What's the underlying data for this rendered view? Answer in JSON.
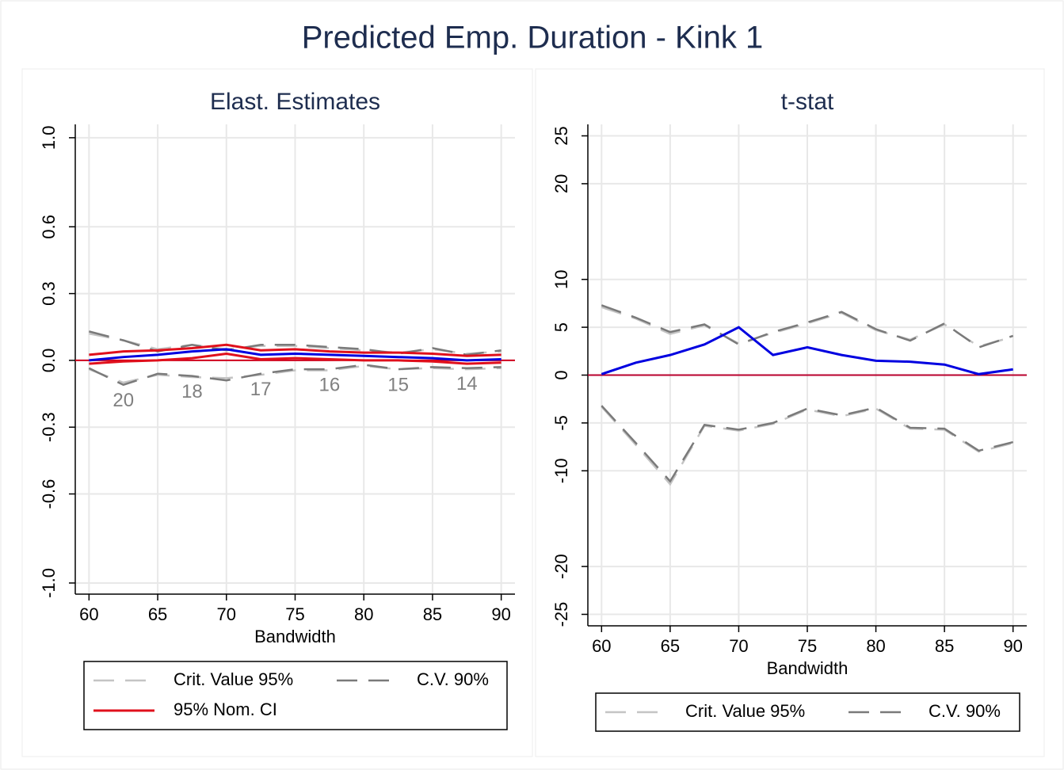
{
  "title": "Predicted Emp. Duration - Kink 1",
  "chart_data": [
    {
      "type": "line",
      "title": "Elast. Estimates",
      "x_label": "Bandwidth",
      "x": [
        60,
        62.5,
        65,
        67.5,
        70,
        72.5,
        75,
        77.5,
        80,
        82.5,
        85,
        87.5,
        90
      ],
      "xlim": [
        59,
        91
      ],
      "xticks": [
        60,
        65,
        70,
        75,
        80,
        85,
        90
      ],
      "ylim": [
        -1.05,
        1.06
      ],
      "yticks": [
        {
          "value": 1,
          "label": "1.0"
        },
        0.6,
        0.3,
        {
          "value": 0,
          "label": "0.0"
        },
        -0.3,
        -0.6,
        {
          "value": -1,
          "label": "-1.0"
        }
      ],
      "grid": true,
      "reference_line": 0,
      "reference_color": "#d0001c",
      "series": [
        {
          "name": "Crit. Value 95%",
          "color": "#c4c4c4",
          "dashed": true,
          "values": [
            0.12,
            0.09,
            0.05,
            0.07,
            0.05,
            0.065,
            0.065,
            0.055,
            0.045,
            0.035,
            0.05,
            0.03,
            0.04
          ],
          "lower": [
            -0.04,
            -0.1,
            -0.065,
            -0.075,
            -0.08,
            -0.065,
            -0.045,
            -0.045,
            -0.025,
            -0.04,
            -0.035,
            -0.04,
            -0.035
          ]
        },
        {
          "name": "C.V. 90%",
          "color": "#7a7a7a",
          "dashed": true,
          "values": [
            0.13,
            0.09,
            0.04,
            0.07,
            0.045,
            0.07,
            0.07,
            0.06,
            0.05,
            0.03,
            0.055,
            0.025,
            0.045
          ],
          "lower": [
            -0.035,
            -0.11,
            -0.06,
            -0.07,
            -0.09,
            -0.06,
            -0.04,
            -0.04,
            -0.02,
            -0.04,
            -0.03,
            -0.035,
            -0.03
          ]
        },
        {
          "name": "95% Nom. CI",
          "color": "#e0101c",
          "dashed": false,
          "values": [
            0.025,
            0.04,
            0.045,
            0.055,
            0.07,
            0.045,
            0.05,
            0.04,
            0.035,
            0.035,
            0.03,
            0.02,
            0.025
          ],
          "lower": [
            -0.015,
            -0.005,
            0,
            0.01,
            0.03,
            0.005,
            0.01,
            0.005,
            0,
            0,
            -0.005,
            -0.015,
            -0.01
          ]
        },
        {
          "color": "#0000e0",
          "dashed": false,
          "values": [
            0,
            0.015,
            0.025,
            0.04,
            0.05,
            0.025,
            0.03,
            0.025,
            0.02,
            0.015,
            0.01,
            0,
            0.005
          ]
        }
      ],
      "annotations": [
        "20",
        "18",
        "17",
        "16",
        "15",
        "14"
      ]
    },
    {
      "type": "line",
      "title": "t-stat",
      "x_label": "Bandwidth",
      "x": [
        60,
        62.5,
        65,
        67.5,
        70,
        72.5,
        75,
        77.5,
        80,
        82.5,
        85,
        87.5,
        90
      ],
      "xlim": [
        59,
        91
      ],
      "xticks": [
        60,
        65,
        70,
        75,
        80,
        85,
        90
      ],
      "ylim": [
        -26.2,
        26.2
      ],
      "yticks": [
        25,
        20,
        10,
        5,
        0,
        -5,
        -10,
        -20,
        -25
      ],
      "grid": true,
      "reference_line": 0,
      "reference_color": "#b8002c",
      "series": [
        {
          "name": "Crit. Value 95%",
          "color": "#c4c4c4",
          "dashed": true,
          "values": [
            7.1,
            5.9,
            4.3,
            5.2,
            3.3,
            4.4,
            5.4,
            6.5,
            4.7,
            3.7,
            5.3,
            3,
            4
          ],
          "lower": [
            -3.3,
            -7.3,
            -11.4,
            -5.3,
            -5.8,
            -5.1,
            -3.6,
            -4.3,
            -3.5,
            -5.6,
            -5.7,
            -8,
            -7.1
          ]
        },
        {
          "name": "C.V. 90%",
          "color": "#7a7a7a",
          "dashed": true,
          "values": [
            7.3,
            6,
            4.5,
            5.3,
            3.2,
            4.5,
            5.5,
            6.6,
            4.8,
            3.6,
            5.4,
            2.9,
            4.1
          ],
          "lower": [
            -3.2,
            -7.1,
            -11.1,
            -5.2,
            -5.7,
            -5,
            -3.5,
            -4.2,
            -3.4,
            -5.5,
            -5.6,
            -7.9,
            -7
          ]
        },
        {
          "color": "#0000e0",
          "dashed": false,
          "values": [
            0.1,
            1.3,
            2.1,
            3.2,
            5,
            2.1,
            2.9,
            2.1,
            1.5,
            1.4,
            1.1,
            0.1,
            0.6
          ]
        }
      ]
    }
  ]
}
